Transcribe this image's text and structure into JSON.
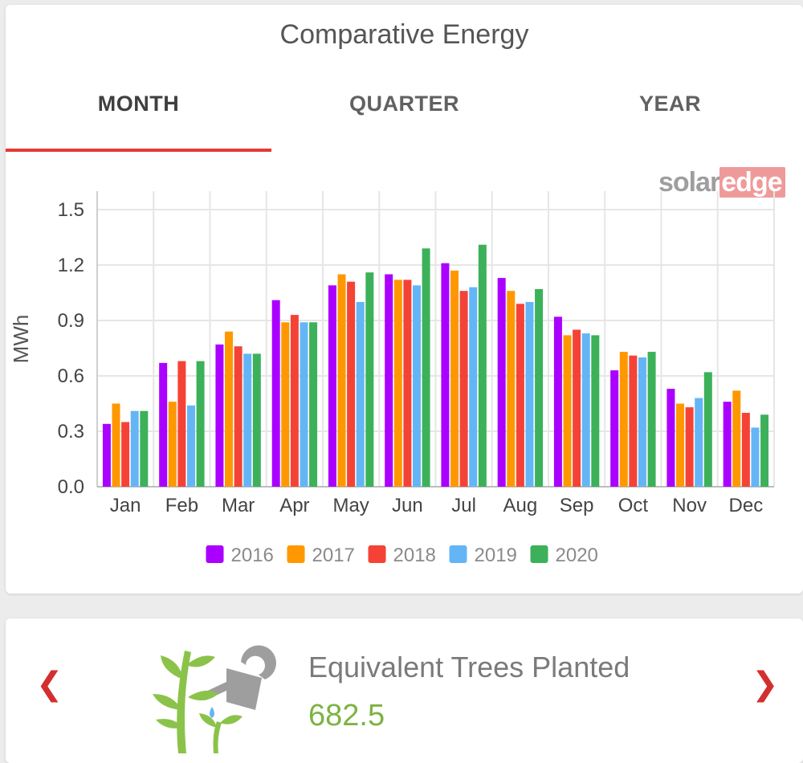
{
  "header": {
    "title": "Comparative Energy"
  },
  "tabs": [
    {
      "label": "MONTH",
      "active": true
    },
    {
      "label": "QUARTER",
      "active": false
    },
    {
      "label": "YEAR",
      "active": false
    }
  ],
  "logo": {
    "part1": "solar",
    "part2": "edge"
  },
  "chart_data": {
    "type": "bar",
    "title": "",
    "xlabel": "",
    "ylabel": "MWh",
    "ylim": [
      0,
      1.6
    ],
    "yticks": [
      "0.0",
      "0.3",
      "0.6",
      "0.9",
      "1.2",
      "1.5"
    ],
    "grid": true,
    "legend_position": "bottom",
    "categories": [
      "Jan",
      "Feb",
      "Mar",
      "Apr",
      "May",
      "Jun",
      "Jul",
      "Aug",
      "Sep",
      "Oct",
      "Nov",
      "Dec"
    ],
    "series": [
      {
        "name": "2016",
        "color": "#aa00ff",
        "values": [
          0.34,
          0.67,
          0.77,
          1.01,
          1.09,
          1.15,
          1.21,
          1.13,
          0.92,
          0.63,
          0.53,
          0.46
        ]
      },
      {
        "name": "2017",
        "color": "#ff9800",
        "values": [
          0.45,
          0.46,
          0.84,
          0.89,
          1.15,
          1.12,
          1.17,
          1.06,
          0.82,
          0.73,
          0.45,
          0.52
        ]
      },
      {
        "name": "2018",
        "color": "#f44336",
        "values": [
          0.35,
          0.68,
          0.76,
          0.93,
          1.11,
          1.12,
          1.06,
          0.99,
          0.85,
          0.71,
          0.43,
          0.4
        ]
      },
      {
        "name": "2019",
        "color": "#64b5f6",
        "values": [
          0.41,
          0.44,
          0.72,
          0.89,
          1.0,
          1.09,
          1.08,
          1.0,
          0.83,
          0.7,
          0.48,
          0.32
        ]
      },
      {
        "name": "2020",
        "color": "#3cb15a",
        "values": [
          0.41,
          0.68,
          0.72,
          0.89,
          1.16,
          1.29,
          1.31,
          1.07,
          0.82,
          0.73,
          0.62,
          0.39
        ]
      }
    ]
  },
  "environment": {
    "title": "Equivalent Trees Planted",
    "value": "682.5",
    "prev_icon": "chevron-left-icon",
    "next_icon": "chevron-right-icon",
    "icon": "watering-trees-icon"
  }
}
